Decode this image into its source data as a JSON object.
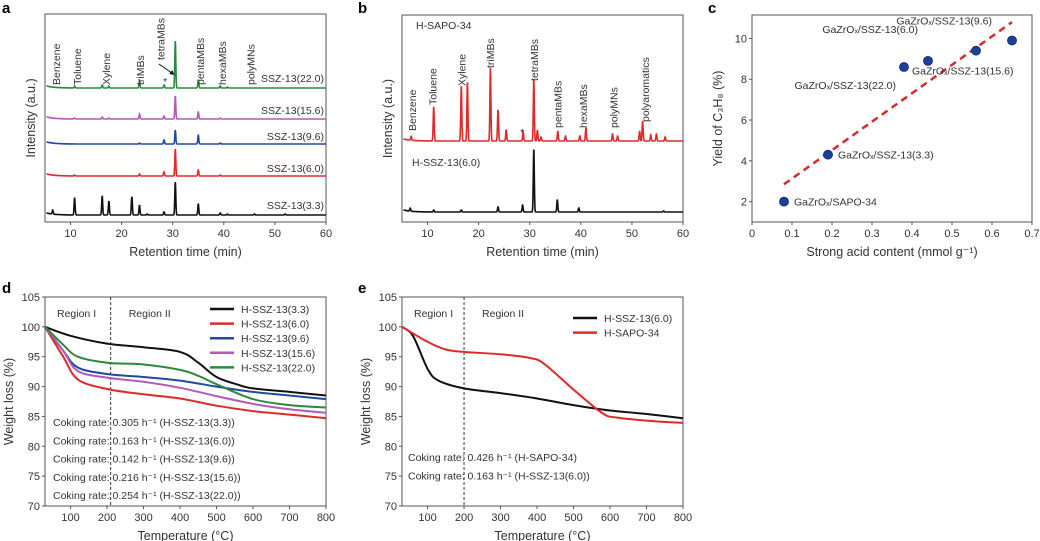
{
  "colors": {
    "black": "#111111",
    "red": "#e02a2a",
    "blue": "#1f4aa0",
    "magenta": "#b35ab8",
    "green": "#2a8a3a",
    "dash_red": "#d42a2a",
    "point_blue": "#1e3f99"
  },
  "chart_data": [
    {
      "panel": "a",
      "type": "line",
      "xlabel": "Retention time (min)",
      "ylabel": "Intensity (a.u.)",
      "xlim": [
        5,
        60
      ],
      "ylim": [
        0,
        208
      ],
      "xticks": [
        10,
        20,
        30,
        40,
        50,
        60
      ],
      "peak_labels": [
        {
          "text": "Benzene",
          "t": 7.2
        },
        {
          "text": "Toluene",
          "t": 11.3
        },
        {
          "text": "Xylene",
          "t": 16.9
        },
        {
          "text": "triMBs",
          "t": 23.6
        },
        {
          "text": "tetraMBs",
          "t": 27.6
        },
        {
          "text": "pentaMBs",
          "t": 35.3
        },
        {
          "text": "hexaMBs",
          "t": 39.6
        },
        {
          "text": "polyMNs",
          "t": 45.2
        }
      ],
      "asterisk": {
        "text": "*",
        "t": 28.7
      },
      "series": [
        {
          "name": "SSZ-13(22.0)",
          "color": "green",
          "offset": 134,
          "peaks": [
            [
              10.8,
              2
            ],
            [
              16.2,
              3
            ],
            [
              17.5,
              2
            ],
            [
              23.5,
              7
            ],
            [
              28.3,
              3
            ],
            [
              30.5,
              47
            ],
            [
              35,
              8
            ],
            [
              39.3,
              2
            ],
            [
              40.7,
              1
            ]
          ]
        },
        {
          "name": "SSZ-13(15.6)",
          "color": "magenta",
          "offset": 103,
          "peaks": [
            [
              10.8,
              1
            ],
            [
              16.2,
              2
            ],
            [
              17.5,
              1
            ],
            [
              23.5,
              5
            ],
            [
              28.3,
              3
            ],
            [
              30.5,
              23
            ],
            [
              35,
              7
            ],
            [
              39.3,
              1
            ]
          ]
        },
        {
          "name": "SSZ-13(9.6)",
          "color": "blue",
          "offset": 78,
          "peaks": [
            [
              23.5,
              1
            ],
            [
              28.3,
              4
            ],
            [
              30.5,
              14
            ],
            [
              35,
              9
            ],
            [
              39.3,
              1
            ]
          ]
        },
        {
          "name": "SSZ-13(6.0)",
          "color": "red",
          "offset": 46,
          "peaks": [
            [
              10.8,
              1
            ],
            [
              23.5,
              2
            ],
            [
              28.3,
              4
            ],
            [
              30.5,
              27
            ],
            [
              35,
              6
            ],
            [
              39.3,
              1
            ]
          ]
        },
        {
          "name": "SSZ-13(3.3)",
          "color": "black",
          "offset": 7,
          "peaks": [
            [
              6.5,
              4
            ],
            [
              10.8,
              17
            ],
            [
              16.2,
              19
            ],
            [
              17.5,
              14
            ],
            [
              22,
              18
            ],
            [
              23.5,
              10
            ],
            [
              25,
              1
            ],
            [
              28.3,
              3
            ],
            [
              30.5,
              33
            ],
            [
              35,
              11
            ],
            [
              39.3,
              2
            ],
            [
              40.7,
              1
            ],
            [
              46,
              1
            ],
            [
              52,
              1
            ]
          ]
        }
      ]
    },
    {
      "panel": "b",
      "type": "line",
      "xlabel": "Retention time (min)",
      "ylabel": "Intensity (a.u.)",
      "xlim": [
        5,
        60
      ],
      "ylim": [
        0,
        207
      ],
      "xticks": [
        10,
        20,
        30,
        40,
        50,
        60
      ],
      "peak_labels": [
        {
          "text": "Benzene",
          "t": 7.0
        },
        {
          "text": "Toluene",
          "t": 11.0
        },
        {
          "text": "Xylene",
          "t": 16.6
        },
        {
          "text": "triMBs",
          "t": 22.2
        },
        {
          "text": "tetraMBs",
          "t": 30.8
        },
        {
          "text": "pentaMBs",
          "t": 35.4
        },
        {
          "text": "hexaMBs",
          "t": 40.4
        },
        {
          "text": "polyMNs",
          "t": 46.4
        },
        {
          "text": "polyaromatics",
          "t": 52.6
        }
      ],
      "asterisk": {
        "text": "*",
        "t": 28.7
      },
      "series": [
        {
          "name": "H-SAPO-34",
          "color": "red",
          "offset": 81,
          "peaks": [
            [
              6.8,
              4
            ],
            [
              11.2,
              34
            ],
            [
              16.6,
              55
            ],
            [
              17.8,
              59
            ],
            [
              22.3,
              73
            ],
            [
              23.8,
              31
            ],
            [
              25.4,
              11
            ],
            [
              28.7,
              9
            ],
            [
              30.8,
              61
            ],
            [
              31.5,
              11
            ],
            [
              32.2,
              4
            ],
            [
              35.5,
              10
            ],
            [
              37,
              5
            ],
            [
              39.8,
              5
            ],
            [
              41,
              13
            ],
            [
              46.2,
              7
            ],
            [
              47.2,
              5
            ],
            [
              51.5,
              10
            ],
            [
              52.1,
              20
            ],
            [
              53.7,
              6
            ],
            [
              54.8,
              7
            ],
            [
              56.5,
              4
            ]
          ]
        },
        {
          "name": "H-SSZ-13(6.0)",
          "color": "black",
          "offset": 10,
          "peaks": [
            [
              6.6,
              3
            ],
            [
              11.2,
              2
            ],
            [
              16.6,
              2
            ],
            [
              23.8,
              5
            ],
            [
              28.6,
              7
            ],
            [
              30.8,
              63
            ],
            [
              35.4,
              12
            ],
            [
              39.6,
              4
            ],
            [
              56.2,
              1
            ]
          ]
        }
      ]
    },
    {
      "panel": "c",
      "type": "scatter",
      "xlabel": "Strong acid content (mmol g⁻¹)",
      "ylabel": "Yield of C₃H₈ (%)",
      "xlim": [
        0,
        0.7
      ],
      "ylim": [
        1,
        11.15
      ],
      "xticks": [
        0,
        0.1,
        0.2,
        0.3,
        0.4,
        0.5,
        0.6,
        0.7
      ],
      "yticks": [
        2,
        4,
        6,
        8,
        10
      ],
      "points": [
        {
          "x": 0.08,
          "y": 2.0,
          "label": "GaZrOₓ/SAPO-34"
        },
        {
          "x": 0.19,
          "y": 4.3,
          "label": "GaZrOₓ/SSZ-13(3.3)"
        },
        {
          "x": 0.38,
          "y": 8.6,
          "label": "GaZrOₓ/SSZ-13(22.0)"
        },
        {
          "x": 0.44,
          "y": 8.9,
          "label": "GaZrOₓ/SSZ-13(6.0)"
        },
        {
          "x": 0.56,
          "y": 9.4,
          "label": "GaZrOₓ/SSZ-13(15.6)"
        },
        {
          "x": 0.65,
          "y": 9.9,
          "label": "GaZrOₓ/SSZ-13(9.6)"
        }
      ],
      "trendline": [
        [
          0.08,
          2.85
        ],
        [
          0.65,
          10.8
        ]
      ]
    },
    {
      "panel": "d",
      "type": "line",
      "xlabel": "Temperature (°C)",
      "ylabel": "Weight loss (%)",
      "xlim": [
        30,
        800
      ],
      "ylim": [
        70,
        105
      ],
      "xticks": [
        100,
        200,
        300,
        400,
        500,
        600,
        700,
        800
      ],
      "yticks": [
        70,
        75,
        80,
        85,
        90,
        95,
        100,
        105
      ],
      "divider_x": 210,
      "regions": [
        "Region I",
        "Region II"
      ],
      "legend_position": "top-right",
      "series": [
        {
          "name": "H-SSZ-13(3.3)",
          "color": "black",
          "points": [
            [
              30,
              100
            ],
            [
              100,
              98.5
            ],
            [
              200,
              97.2
            ],
            [
              300,
              96.6
            ],
            [
              400,
              95.8
            ],
            [
              450,
              94
            ],
            [
              500,
              91.6
            ],
            [
              560,
              90.3
            ],
            [
              600,
              89.7
            ],
            [
              700,
              89.1
            ],
            [
              800,
              88.5
            ]
          ]
        },
        {
          "name": "H-SSZ-13(6.0)",
          "color": "red",
          "points": [
            [
              30,
              100
            ],
            [
              80,
              95
            ],
            [
              120,
              91.2
            ],
            [
              200,
              89.6
            ],
            [
              300,
              88.7
            ],
            [
              400,
              88
            ],
            [
              500,
              86.8
            ],
            [
              600,
              85.9
            ],
            [
              700,
              85.3
            ],
            [
              800,
              84.7
            ]
          ]
        },
        {
          "name": "H-SSZ-13(9.6)",
          "color": "blue",
          "points": [
            [
              30,
              100
            ],
            [
              80,
              96
            ],
            [
              120,
              93.2
            ],
            [
              200,
              92.1
            ],
            [
              300,
              91.6
            ],
            [
              400,
              91
            ],
            [
              500,
              90
            ],
            [
              600,
              89.1
            ],
            [
              700,
              88.5
            ],
            [
              800,
              87.9
            ]
          ]
        },
        {
          "name": "H-SSZ-13(15.6)",
          "color": "magenta",
          "points": [
            [
              30,
              100
            ],
            [
              80,
              96
            ],
            [
              120,
              92.6
            ],
            [
              200,
              91.5
            ],
            [
              300,
              90.8
            ],
            [
              400,
              89.8
            ],
            [
              500,
              88.4
            ],
            [
              600,
              87.1
            ],
            [
              700,
              86.2
            ],
            [
              800,
              85.6
            ]
          ]
        },
        {
          "name": "H-SSZ-13(22.0)",
          "color": "green",
          "points": [
            [
              30,
              100
            ],
            [
              80,
              97
            ],
            [
              120,
              95
            ],
            [
              200,
              94
            ],
            [
              300,
              93.7
            ],
            [
              400,
              92.8
            ],
            [
              450,
              91.8
            ],
            [
              500,
              90.4
            ],
            [
              600,
              87.9
            ],
            [
              700,
              86.9
            ],
            [
              800,
              86.5
            ]
          ]
        }
      ],
      "annotations": [
        "Coking rate: 0.305 h⁻¹ (H-SSZ-13(3.3))",
        "Coking rate: 0.163 h⁻¹ (H-SSZ-13(6.0))",
        "Coking rate: 0.142 h⁻¹ (H-SSZ-13(9.6))",
        "Coking rate: 0.216 h⁻¹ (H-SSZ-13(15.6))",
        "Coking rate: 0.254 h⁻¹ (H-SSZ-13(22.0))"
      ]
    },
    {
      "panel": "e",
      "type": "line",
      "xlabel": "Temperature (°C)",
      "ylabel": "Weight loss (%)",
      "xlim": [
        30,
        800
      ],
      "ylim": [
        70,
        105
      ],
      "xticks": [
        100,
        200,
        300,
        400,
        500,
        600,
        700,
        800
      ],
      "yticks": [
        70,
        75,
        80,
        85,
        90,
        95,
        100,
        105
      ],
      "divider_x": 200,
      "regions": [
        "Region I",
        "Region II"
      ],
      "legend_position": "top-right",
      "series": [
        {
          "name": "H-SSZ-13(6.0)",
          "color": "black",
          "points": [
            [
              30,
              100
            ],
            [
              60,
              98.5
            ],
            [
              100,
              93
            ],
            [
              130,
              91
            ],
            [
              200,
              89.7
            ],
            [
              300,
              88.9
            ],
            [
              400,
              88
            ],
            [
              500,
              86.9
            ],
            [
              600,
              86
            ],
            [
              700,
              85.4
            ],
            [
              800,
              84.7
            ]
          ]
        },
        {
          "name": "H-SAPO-34",
          "color": "red",
          "points": [
            [
              30,
              100
            ],
            [
              100,
              97.5
            ],
            [
              150,
              96.2
            ],
            [
              200,
              95.8
            ],
            [
              300,
              95.4
            ],
            [
              380,
              94.8
            ],
            [
              420,
              93.8
            ],
            [
              500,
              89.5
            ],
            [
              580,
              85.5
            ],
            [
              620,
              84.8
            ],
            [
              700,
              84.3
            ],
            [
              800,
              83.9
            ]
          ]
        }
      ],
      "annotations": [
        "Coking rate: 0.426 h⁻¹ (H-SAPO-34)",
        "Coking rate: 0.163 h⁻¹ (H-SSZ-13(6.0))"
      ]
    }
  ]
}
